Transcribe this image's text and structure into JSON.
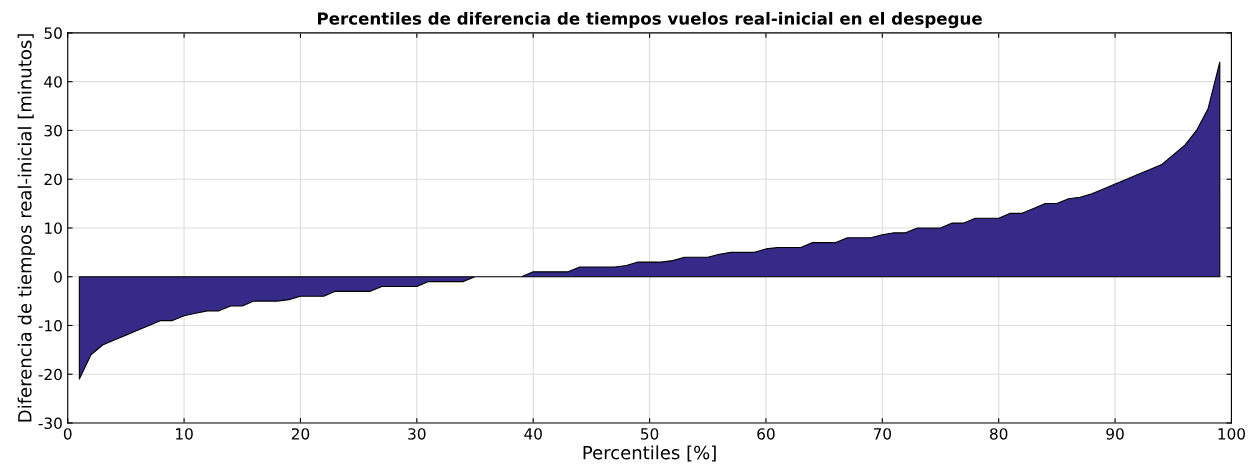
{
  "chart_data": {
    "type": "area",
    "title": "Percentiles de diferencia de tiempos vuelos real-inicial en el despegue",
    "xlabel": "Percentiles [%]",
    "ylabel": "Diferencia de tiempos real-inicial [minutos]",
    "x": [
      1,
      2,
      3,
      4,
      5,
      6,
      7,
      8,
      9,
      10,
      11,
      12,
      13,
      14,
      15,
      16,
      17,
      18,
      19,
      20,
      21,
      22,
      23,
      24,
      25,
      26,
      27,
      28,
      29,
      30,
      31,
      32,
      33,
      34,
      35,
      36,
      37,
      38,
      39,
      40,
      41,
      42,
      43,
      44,
      45,
      46,
      47,
      48,
      49,
      50,
      51,
      52,
      53,
      54,
      55,
      56,
      57,
      58,
      59,
      60,
      61,
      62,
      63,
      64,
      65,
      66,
      67,
      68,
      69,
      70,
      71,
      72,
      73,
      74,
      75,
      76,
      77,
      78,
      79,
      80,
      81,
      82,
      83,
      84,
      85,
      86,
      87,
      88,
      89,
      90,
      91,
      92,
      93,
      94,
      95,
      96,
      97,
      98,
      99
    ],
    "series": [
      {
        "color": "#352a87",
        "values": [
          -21,
          -16,
          -14,
          -13,
          -12,
          -11,
          -10,
          -9,
          -9,
          -8,
          -7.5,
          -7,
          -7,
          -6,
          -6,
          -5,
          -5,
          -5,
          -4.7,
          -4,
          -4,
          -4,
          -3,
          -3,
          -3,
          -3,
          -2,
          -2,
          -2,
          -2,
          -1,
          -1,
          -1,
          -1,
          0,
          0,
          0,
          0,
          0,
          1,
          1,
          1,
          1,
          2,
          2,
          2,
          2,
          2.3,
          3,
          3,
          3,
          3.3,
          4,
          4,
          4,
          4.6,
          5,
          5,
          5,
          5.7,
          6,
          6,
          6,
          7,
          7,
          7,
          8,
          8,
          8,
          8.6,
          9,
          9,
          10,
          10,
          10,
          11,
          11,
          12,
          12,
          12,
          13,
          13,
          14,
          15,
          15,
          16,
          16.3,
          17,
          18,
          19,
          20,
          21,
          22,
          23,
          25,
          27,
          30,
          34.5,
          44
        ]
      }
    ],
    "xlim": [
      0,
      100
    ],
    "xticks": [
      0,
      10,
      20,
      30,
      40,
      50,
      60,
      70,
      80,
      90,
      100
    ],
    "ylim": [
      -30,
      50
    ],
    "yticks": [
      -30,
      -20,
      -10,
      0,
      10,
      20,
      30,
      40,
      50
    ],
    "grid": true
  }
}
